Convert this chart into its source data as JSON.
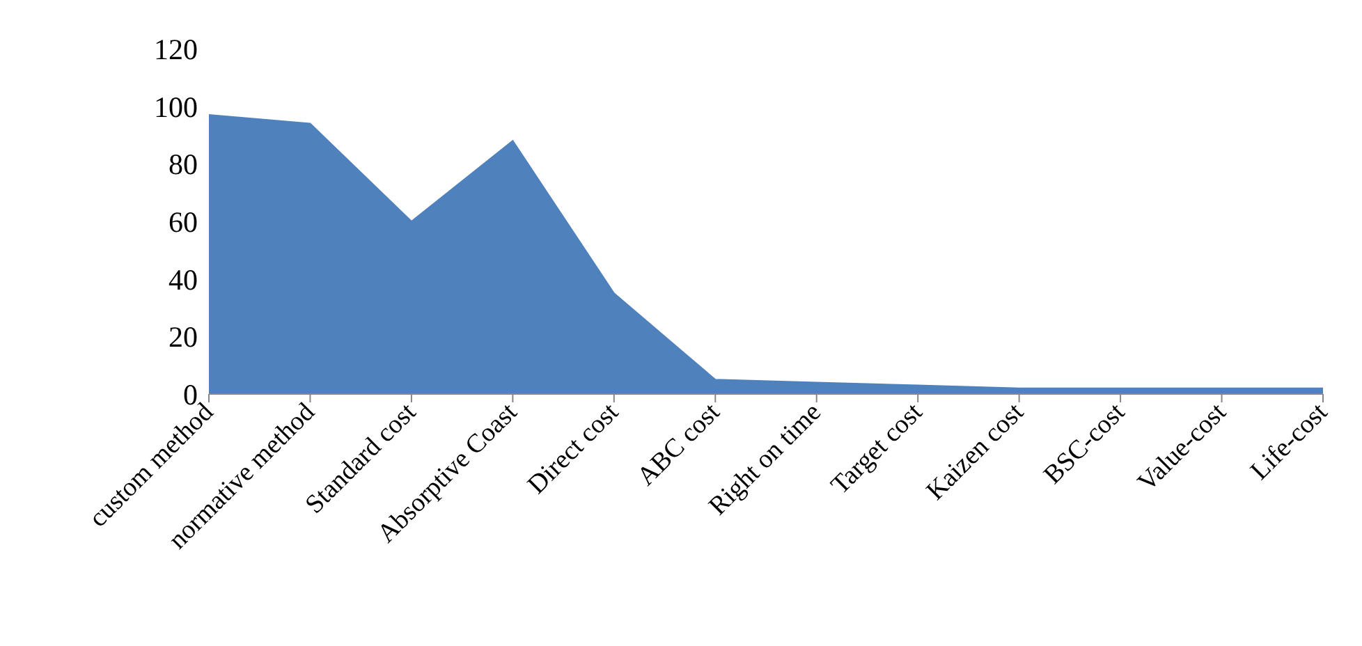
{
  "chart_data": {
    "type": "area",
    "categories": [
      "custom method",
      "normative method",
      "Standard cost",
      "Absorptive Coast",
      "Direct cost",
      "ABC cost",
      "Right on time",
      "Target cost",
      "Kaizen cost",
      "BSC-cost",
      "Value-cost",
      "Life-cost"
    ],
    "series": [
      {
        "color": "#4f81bd",
        "values": [
          97,
          94,
          60,
          88,
          35,
          5,
          4,
          3,
          2,
          2,
          2,
          2
        ]
      }
    ],
    "ylim": [
      0,
      120
    ],
    "yticks": [
      0,
      20,
      40,
      60,
      80,
      100,
      120
    ],
    "grid": false,
    "legend": false
  }
}
